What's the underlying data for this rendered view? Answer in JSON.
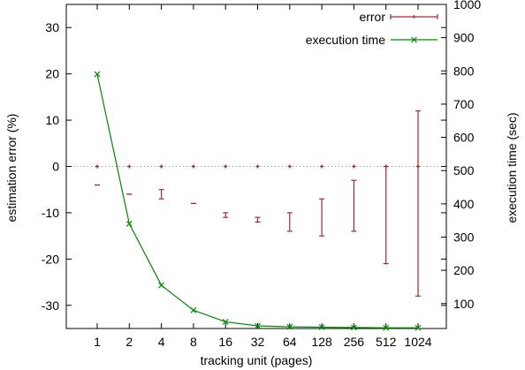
{
  "chart_data": {
    "type": "line",
    "title": "",
    "xlabel": "tracking unit (pages)",
    "ylabel": "estimation error (%)",
    "y2label": "execution time (sec)",
    "categories": [
      "1",
      "2",
      "4",
      "8",
      "16",
      "32",
      "64",
      "128",
      "256",
      "512",
      "1024"
    ],
    "ylim": [
      -35,
      35
    ],
    "y2lim": [
      25,
      1000
    ],
    "yticks": [
      -30,
      -20,
      -10,
      0,
      10,
      20,
      30
    ],
    "y2ticks": [
      100,
      200,
      300,
      400,
      500,
      600,
      700,
      800,
      900,
      1000
    ],
    "grid": false,
    "reference_line": {
      "y": 0,
      "style": "dotted"
    },
    "legend": {
      "position": "top-right"
    },
    "series": [
      {
        "name": "error",
        "kind": "errorbar",
        "axis": "left",
        "color": "#a52a2a",
        "values": [
          0,
          0,
          0,
          0,
          0,
          0,
          0,
          0,
          0,
          0,
          0
        ],
        "low": [
          -4,
          -6,
          -7,
          -8,
          -11,
          -12,
          -14,
          -15,
          -14,
          -21,
          -28
        ],
        "high": [
          -4,
          -6,
          -5,
          -8,
          -10,
          -11,
          -10,
          -7,
          -3,
          0,
          12
        ]
      },
      {
        "name": "execution time",
        "kind": "line",
        "axis": "right",
        "color": "#008a00",
        "marker": "x",
        "values": [
          790,
          340,
          155,
          80,
          45,
          33,
          30,
          29,
          28,
          27,
          27
        ]
      }
    ]
  }
}
